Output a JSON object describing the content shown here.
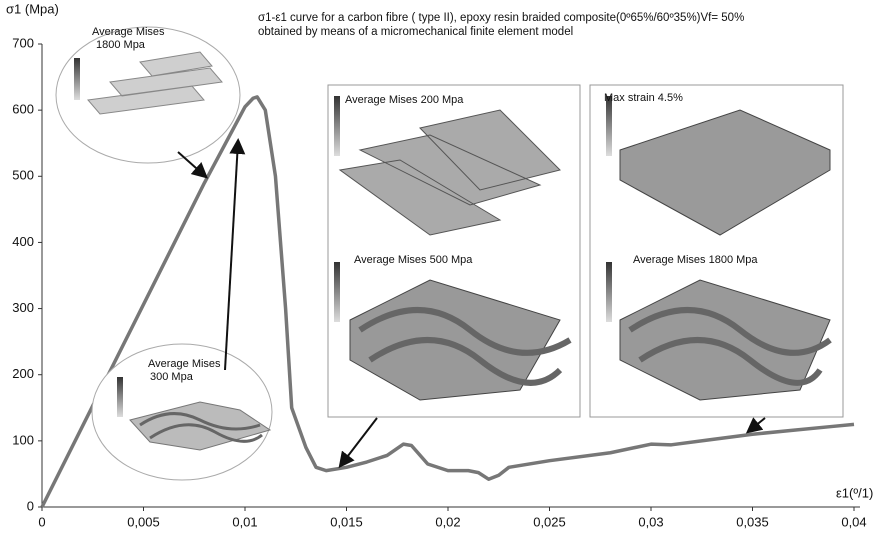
{
  "chart_data": {
    "type": "line",
    "title": [
      "σ1-ε1 curve for a carbon fibre ( type II), epoxy resin braided composite(0º65%/60º35%)Vf= 50%",
      "obtained by means of a micromechanical finite element model"
    ],
    "y_label": "σ1 (Mpa)",
    "x_label": "ε1(º/1)",
    "x": [
      0,
      0.008,
      0.01,
      0.0104,
      0.0106,
      0.011,
      0.0115,
      0.012,
      0.0123,
      0.013,
      0.0135,
      0.014,
      0.015,
      0.016,
      0.017,
      0.0178,
      0.0182,
      0.019,
      0.02,
      0.021,
      0.0215,
      0.022,
      0.0225,
      0.023,
      0.025,
      0.028,
      0.03,
      0.031,
      0.033,
      0.035,
      0.037,
      0.039,
      0.04
    ],
    "values": [
      0,
      490,
      605,
      618,
      620,
      600,
      500,
      300,
      150,
      90,
      60,
      55,
      60,
      68,
      78,
      95,
      93,
      65,
      55,
      55,
      52,
      42,
      48,
      60,
      70,
      82,
      95,
      94,
      102,
      110,
      116,
      122,
      125
    ],
    "color": "#777777",
    "xlim": [
      0,
      0.04
    ],
    "ylim": [
      0,
      700
    ],
    "xticks": [
      0,
      {
        "value": 0.005,
        "label": "0,005"
      },
      {
        "value": 0.01,
        "label": "0,01"
      },
      {
        "value": 0.015,
        "label": "0,015"
      },
      {
        "value": 0.02,
        "label": "0,02"
      },
      {
        "value": 0.025,
        "label": "0,025"
      },
      {
        "value": 0.03,
        "label": "0,03"
      },
      {
        "value": 0.035,
        "label": "0,035"
      },
      {
        "value": 0.04,
        "label": "0,04"
      }
    ],
    "yticks": [
      0,
      100,
      200,
      300,
      400,
      500,
      600,
      700
    ],
    "annotations": [
      "Average Mises",
      "1800 Mpa",
      "Average Mises",
      "300 Mpa",
      "Average Mises 200 Mpa",
      "Average Mises 500 Mpa",
      "Max strain 4.5%",
      "Average Mises 1800 Mpa"
    ]
  }
}
